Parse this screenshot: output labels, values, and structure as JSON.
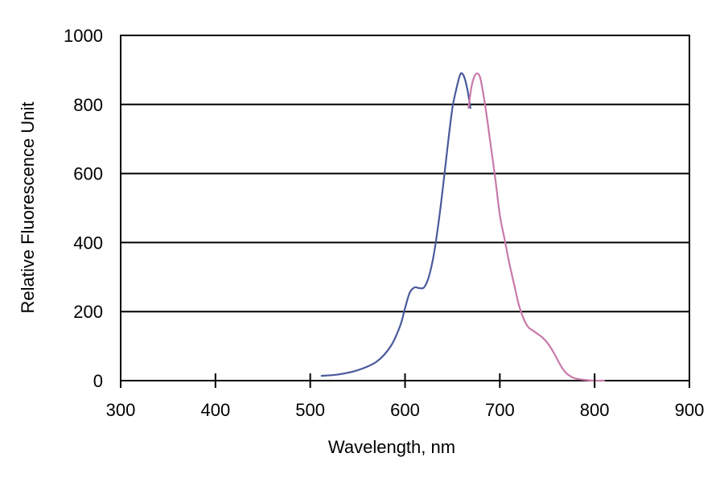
{
  "chart_data": {
    "type": "line",
    "xlabel": "Wavelength, nm",
    "ylabel": "Relative Fluorescence Unit",
    "xlim": [
      300,
      900
    ],
    "ylim": [
      0,
      1000
    ],
    "xticks": [
      "300",
      "400",
      "500",
      "600",
      "700",
      "800",
      "900"
    ],
    "yticks": [
      "0",
      "200",
      "400",
      "600",
      "800",
      "1000"
    ],
    "grid": "horizontal",
    "legend": "none",
    "series": [
      {
        "color": "#4a5a9c",
        "points": [
          [
            512,
            14
          ],
          [
            530,
            18
          ],
          [
            550,
            30
          ],
          [
            570,
            55
          ],
          [
            585,
            100
          ],
          [
            595,
            160
          ],
          [
            600,
            210
          ],
          [
            605,
            255
          ],
          [
            610,
            270
          ],
          [
            615,
            268
          ],
          [
            620,
            270
          ],
          [
            625,
            300
          ],
          [
            630,
            360
          ],
          [
            635,
            450
          ],
          [
            640,
            560
          ],
          [
            645,
            680
          ],
          [
            650,
            790
          ],
          [
            655,
            855
          ],
          [
            658,
            885
          ],
          [
            660,
            890
          ],
          [
            663,
            875
          ],
          [
            666,
            840
          ],
          [
            669,
            790
          ]
        ]
      },
      {
        "color": "#c879a8",
        "points": [
          [
            667,
            790
          ],
          [
            670,
            850
          ],
          [
            673,
            880
          ],
          [
            676,
            890
          ],
          [
            679,
            880
          ],
          [
            682,
            840
          ],
          [
            686,
            770
          ],
          [
            690,
            690
          ],
          [
            695,
            590
          ],
          [
            700,
            480
          ],
          [
            705,
            410
          ],
          [
            710,
            340
          ],
          [
            715,
            280
          ],
          [
            720,
            220
          ],
          [
            725,
            180
          ],
          [
            730,
            155
          ],
          [
            735,
            145
          ],
          [
            740,
            135
          ],
          [
            745,
            125
          ],
          [
            750,
            110
          ],
          [
            755,
            90
          ],
          [
            760,
            65
          ],
          [
            765,
            40
          ],
          [
            770,
            22
          ],
          [
            775,
            12
          ],
          [
            780,
            6
          ],
          [
            790,
            2
          ],
          [
            800,
            0
          ],
          [
            810,
            0
          ]
        ]
      }
    ]
  }
}
